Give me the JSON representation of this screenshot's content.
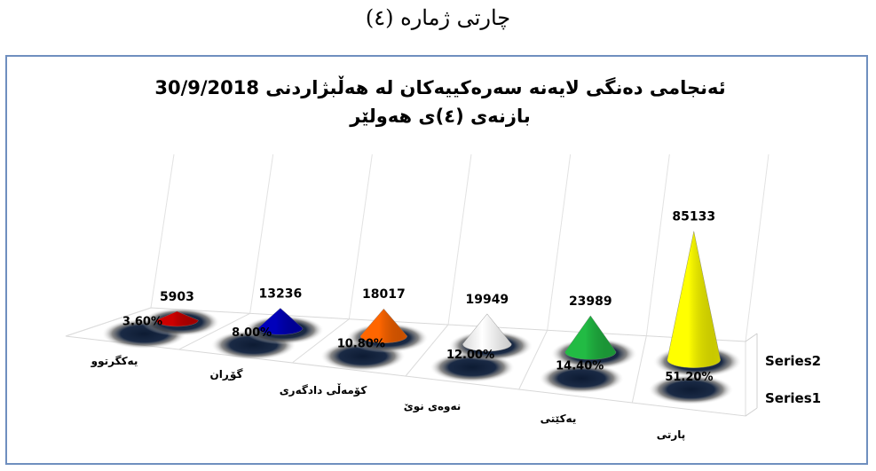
{
  "caption": "چارتی ژمارە (٤)",
  "chart_data": {
    "type": "3d-cone-column",
    "title_line1": "ئەنجامی دەنگی لایەنە سەرەکییەکان لە هەڵبژاردنی 30/9/2018",
    "title_line2": "بازنەی (٤)ی هەولێر",
    "categories": [
      "یەکگرتوو",
      "گۆڕان",
      "کۆمەڵی دادگەری",
      "نەوەی نوێ",
      "یەکێتی",
      "پارتی"
    ],
    "series": [
      {
        "name": "Series1",
        "values": [
          "3.60%",
          "8.00%",
          "10.80%",
          "12.00%",
          "14.40%",
          "51.20%"
        ],
        "numeric": [
          3.6,
          8.0,
          10.8,
          12.0,
          14.4,
          51.2
        ]
      },
      {
        "name": "Series2",
        "values": [
          5903,
          13236,
          18017,
          19949,
          23989,
          85133
        ]
      }
    ],
    "colors": [
      "#cc0000",
      "#0000bb",
      "#ff6600",
      "#ffffff",
      "#22bb44",
      "#ffff00"
    ],
    "legend": "right"
  }
}
